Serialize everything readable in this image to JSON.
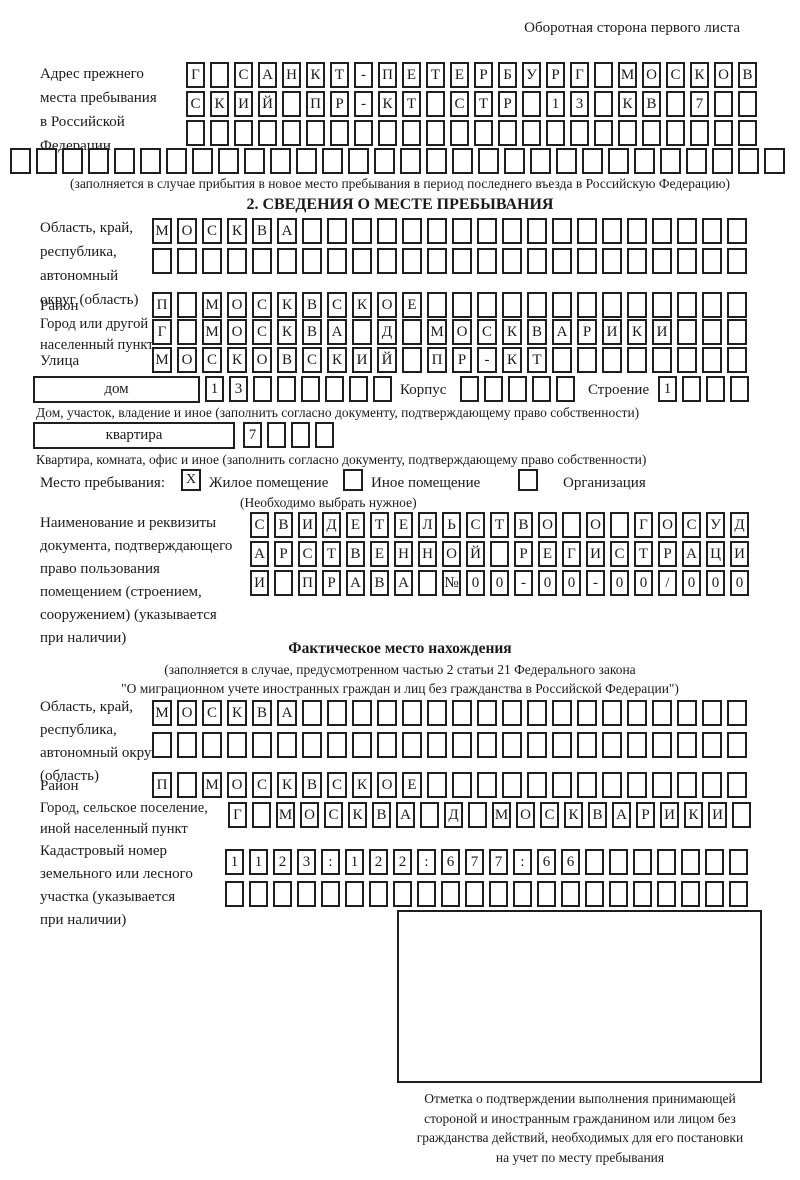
{
  "header": {
    "note": "Оборотная сторона первого листа"
  },
  "prev_address": {
    "label_lines": [
      "Адрес прежнего",
      "места пребывания",
      "в Российской",
      "Федерации"
    ],
    "rows": [
      "Г САНКТ-ПЕТЕРБУРГ МОСКОВ",
      "СКИЙ ПР-КТ СТР 13 КВ 7",
      "",
      ""
    ],
    "note": "(заполняется в случае прибытия в новое место пребывания в период последнего въезда в Российскую Федерацию)"
  },
  "section2": {
    "title": "2. СВЕДЕНИЯ О МЕСТЕ ПРЕБЫВАНИЯ",
    "region": {
      "label_lines": [
        "Область, край,",
        "республика,",
        "автономный",
        "округ (область)"
      ],
      "rows": [
        "МОСКВА",
        ""
      ]
    },
    "district": {
      "label": "Район",
      "row": "П МОСКВСКОЕ"
    },
    "city": {
      "label_lines": [
        "Город или другой",
        "населенный пункт"
      ],
      "row": "Г МОСКВА Д МОСКВАРИКИ"
    },
    "street": {
      "label": "Улица",
      "row": "МОСКОВСКИЙ ПР-КТ"
    },
    "house": {
      "label": "дом",
      "value": "13",
      "korpus_label": "Корпус",
      "korpus_value": "",
      "stroenie_label": "Строение",
      "stroenie_value": "1",
      "caption": "Дом, участок, владение и иное (заполнить согласно документу, подтверждающему право собственности)"
    },
    "apartment": {
      "label": "квартира",
      "value": "7",
      "caption": "Квартира, комната, офис и иное (заполнить согласно документу, подтверждающему право собственности)"
    },
    "stay_type": {
      "label": "Место пребывания:",
      "options": [
        {
          "label": "Жилое помещение",
          "checked": "X"
        },
        {
          "label": "Иное помещение",
          "checked": ""
        },
        {
          "label": "Организация",
          "checked": ""
        }
      ],
      "note": "(Необходимо выбрать нужное)"
    },
    "doc": {
      "label_lines": [
        "Наименование и реквизиты",
        "документа, подтверждающего",
        "право пользования",
        "помещением (строением,",
        "сооружением) (указывается",
        "при наличии)"
      ],
      "rows": [
        "СВИДЕТЕЛЬСТВО О ГОСУД",
        "АРСТВЕННОЙ РЕГИСТРАЦИ",
        "И ПРАВА №00-00-00/000"
      ]
    }
  },
  "section3": {
    "title": "Фактическое место нахождения",
    "note_lines": [
      "(заполняется в случае, предусмотренном частью 2 статьи 21 Федерального закона",
      "\"О миграционном учете иностранных граждан и лиц без гражданства в Российской Федерации\")"
    ],
    "region": {
      "label_lines": [
        "Область, край,",
        "республика,",
        "автономный округ",
        "(область)"
      ],
      "rows": [
        "МОСКВА",
        ""
      ]
    },
    "district": {
      "label": "Район",
      "row": "П МОСКВСКОЕ"
    },
    "city": {
      "label_lines": [
        "Город, сельское поселение,",
        "иной населенный пункт"
      ],
      "row": "Г МОСКВА Д МОСКВАРИКИ"
    },
    "cadastre": {
      "label_lines": [
        "Кадастровый номер",
        "земельного или лесного",
        "участка (указывается",
        "при наличии)"
      ],
      "rows": [
        "1123:122:677:66",
        ""
      ]
    },
    "confirmation": {
      "caption_lines": [
        "Отметка о подтверждении выполнения принимающей",
        "стороной и иностранным гражданином или лицом без",
        "гражданства действий, необходимых для его постановки",
        "на учет по месту пребывания"
      ]
    }
  }
}
